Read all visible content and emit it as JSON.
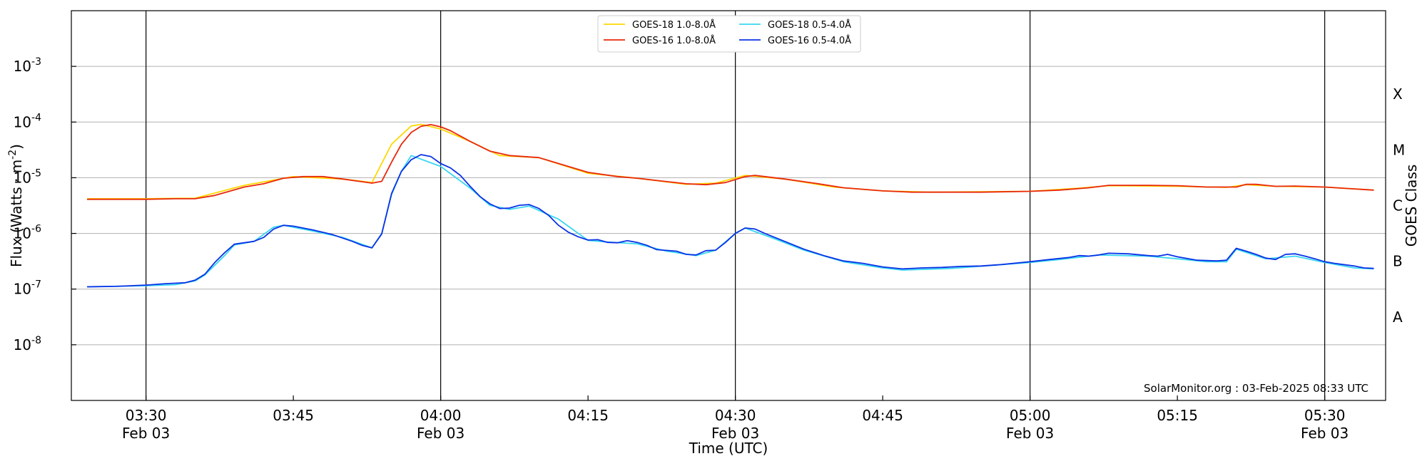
{
  "chart_data": {
    "type": "line",
    "title": "",
    "xlabel": "Time (UTC)",
    "ylabel": "Flux (Watts · m",
    "ylabel_superscript": "-2",
    "ylabel_suffix": ")",
    "y2label": "GOES Class",
    "yscale": "log",
    "ylim": [
      1e-09,
      0.01
    ],
    "x_range_minutes": [
      "03:23",
      "05:35"
    ],
    "grid": "horizontal",
    "legend_position": "top-center",
    "credit": "SolarMonitor.org : 03-Feb-2025 08:33 UTC",
    "yticks": [
      {
        "exp": "-8",
        "value": 1e-08
      },
      {
        "exp": "-7",
        "value": 1e-07
      },
      {
        "exp": "-6",
        "value": 1e-06
      },
      {
        "exp": "-5",
        "value": 1e-05
      },
      {
        "exp": "-4",
        "value": 0.0001
      },
      {
        "exp": "-3",
        "value": 0.001
      }
    ],
    "xticks": [
      {
        "time": "03:30",
        "date": "Feb 03",
        "vline": true
      },
      {
        "time": "03:45",
        "date": "",
        "vline": false
      },
      {
        "time": "04:00",
        "date": "Feb 03",
        "vline": true
      },
      {
        "time": "04:15",
        "date": "",
        "vline": false
      },
      {
        "time": "04:30",
        "date": "Feb 03",
        "vline": true
      },
      {
        "time": "04:45",
        "date": "",
        "vline": false
      },
      {
        "time": "05:00",
        "date": "Feb 03",
        "vline": true
      },
      {
        "time": "05:15",
        "date": "",
        "vline": false
      },
      {
        "time": "05:30",
        "date": "Feb 03",
        "vline": true
      }
    ],
    "goes_classes": [
      {
        "label": "A",
        "value": 3.16e-08
      },
      {
        "label": "B",
        "value": 3.16e-07
      },
      {
        "label": "C",
        "value": 3.16e-06
      },
      {
        "label": "M",
        "value": 3.16e-05
      },
      {
        "label": "X",
        "value": 0.000316
      }
    ],
    "series": [
      {
        "name": "GOES-18 1.0-8.0Å",
        "color": "#ffd700",
        "points": [
          [
            "03:24",
            4.2e-06
          ],
          [
            "03:30",
            4.2e-06
          ],
          [
            "03:35",
            4.3e-06
          ],
          [
            "03:40",
            7.3e-06
          ],
          [
            "03:45",
            1.05e-05
          ],
          [
            "03:50",
            9.5e-06
          ],
          [
            "03:53",
            8.2e-06
          ],
          [
            "03:55",
            4e-05
          ],
          [
            "03:57",
            8.5e-05
          ],
          [
            "03:58",
            9.1e-05
          ],
          [
            "04:00",
            7.5e-05
          ],
          [
            "04:03",
            4.5e-05
          ],
          [
            "04:06",
            2.5e-05
          ],
          [
            "04:10",
            2.3e-05
          ],
          [
            "04:15",
            1.2e-05
          ],
          [
            "04:20",
            9.8e-06
          ],
          [
            "04:25",
            7.6e-06
          ],
          [
            "04:28",
            8e-06
          ],
          [
            "04:31",
            1.1e-05
          ],
          [
            "04:35",
            9.5e-06
          ],
          [
            "04:40",
            6.8e-06
          ],
          [
            "04:45",
            5.8e-06
          ],
          [
            "04:50",
            5.5e-06
          ],
          [
            "05:00",
            5.7e-06
          ],
          [
            "05:05",
            6.5e-06
          ],
          [
            "05:08",
            7.2e-06
          ],
          [
            "05:15",
            7e-06
          ],
          [
            "05:20",
            6.7e-06
          ],
          [
            "05:22",
            7.5e-06
          ],
          [
            "05:25",
            7e-06
          ],
          [
            "05:30",
            6.8e-06
          ],
          [
            "05:35",
            6e-06
          ]
        ]
      },
      {
        "name": "GOES-16 1.0-8.0Å",
        "color": "#e8280a",
        "points": [
          [
            "03:24",
            4.1e-06
          ],
          [
            "03:27",
            4.1e-06
          ],
          [
            "03:30",
            4.1e-06
          ],
          [
            "03:33",
            4.2e-06
          ],
          [
            "03:35",
            4.2e-06
          ],
          [
            "03:37",
            4.8e-06
          ],
          [
            "03:40",
            6.8e-06
          ],
          [
            "03:42",
            7.8e-06
          ],
          [
            "03:44",
            9.8e-06
          ],
          [
            "03:46",
            1.05e-05
          ],
          [
            "03:48",
            1.05e-05
          ],
          [
            "03:50",
            9.5e-06
          ],
          [
            "03:53",
            8e-06
          ],
          [
            "03:54",
            8.6e-06
          ],
          [
            "03:55",
            1.9e-05
          ],
          [
            "03:56",
            4e-05
          ],
          [
            "03:57",
            6.5e-05
          ],
          [
            "03:58",
            8.4e-05
          ],
          [
            "03:59",
            9e-05
          ],
          [
            "04:00",
            8.2e-05
          ],
          [
            "04:01",
            7e-05
          ],
          [
            "04:03",
            4.5e-05
          ],
          [
            "04:05",
            3e-05
          ],
          [
            "04:07",
            2.5e-05
          ],
          [
            "04:10",
            2.3e-05
          ],
          [
            "04:12",
            1.8e-05
          ],
          [
            "04:15",
            1.25e-05
          ],
          [
            "04:18",
            1.05e-05
          ],
          [
            "04:20",
            9.8e-06
          ],
          [
            "04:23",
            8.5e-06
          ],
          [
            "04:25",
            7.8e-06
          ],
          [
            "04:27",
            7.5e-06
          ],
          [
            "04:29",
            8.2e-06
          ],
          [
            "04:31",
            1.05e-05
          ],
          [
            "04:32",
            1.1e-05
          ],
          [
            "04:35",
            9.5e-06
          ],
          [
            "04:38",
            8e-06
          ],
          [
            "04:41",
            6.6e-06
          ],
          [
            "04:45",
            5.8e-06
          ],
          [
            "04:48",
            5.5e-06
          ],
          [
            "04:52",
            5.5e-06
          ],
          [
            "04:55",
            5.5e-06
          ],
          [
            "05:00",
            5.7e-06
          ],
          [
            "05:03",
            6e-06
          ],
          [
            "05:06",
            6.6e-06
          ],
          [
            "05:08",
            7.3e-06
          ],
          [
            "05:12",
            7.3e-06
          ],
          [
            "05:15",
            7.2e-06
          ],
          [
            "05:18",
            6.8e-06
          ],
          [
            "05:21",
            6.8e-06
          ],
          [
            "05:22",
            7.6e-06
          ],
          [
            "05:23",
            7.6e-06
          ],
          [
            "05:25",
            7e-06
          ],
          [
            "05:27",
            7.1e-06
          ],
          [
            "05:30",
            6.8e-06
          ],
          [
            "05:33",
            6.3e-06
          ],
          [
            "05:35",
            6e-06
          ]
        ]
      },
      {
        "name": "GOES-18 0.5-4.0Å",
        "color": "#39d6f0",
        "points": [
          [
            "03:24",
            1.1e-07
          ],
          [
            "03:30",
            1.15e-07
          ],
          [
            "03:33",
            1.2e-07
          ],
          [
            "03:35",
            1.4e-07
          ],
          [
            "03:36",
            1.8e-07
          ],
          [
            "03:38",
            4e-07
          ],
          [
            "03:39",
            6.2e-07
          ],
          [
            "03:41",
            7.2e-07
          ],
          [
            "03:43",
            1.3e-06
          ],
          [
            "03:44",
            1.4e-06
          ],
          [
            "03:47",
            1.1e-06
          ],
          [
            "03:50",
            8.5e-07
          ],
          [
            "03:53",
            5.5e-07
          ],
          [
            "03:54",
            1e-06
          ],
          [
            "03:55",
            5e-06
          ],
          [
            "03:56",
            1.3e-05
          ],
          [
            "03:57",
            2.5e-05
          ],
          [
            "04:00",
            1.6e-05
          ],
          [
            "04:03",
            6.5e-06
          ],
          [
            "04:05",
            3.2e-06
          ],
          [
            "04:07",
            2.7e-06
          ],
          [
            "04:09",
            3.1e-06
          ],
          [
            "04:12",
            1.8e-06
          ],
          [
            "04:15",
            7.5e-07
          ],
          [
            "04:17",
            7e-07
          ],
          [
            "04:20",
            6.5e-07
          ],
          [
            "04:23",
            4.8e-07
          ],
          [
            "04:26",
            4e-07
          ],
          [
            "04:28",
            5e-07
          ],
          [
            "04:30",
            1e-06
          ],
          [
            "04:31",
            1.25e-06
          ],
          [
            "04:34",
            8e-07
          ],
          [
            "04:37",
            5e-07
          ],
          [
            "04:41",
            3.1e-07
          ],
          [
            "04:45",
            2.4e-07
          ],
          [
            "04:47",
            2.2e-07
          ],
          [
            "04:52",
            2.35e-07
          ],
          [
            "05:00",
            3e-07
          ],
          [
            "05:03",
            3.4e-07
          ],
          [
            "05:07",
            4.1e-07
          ],
          [
            "05:12",
            3.9e-07
          ],
          [
            "05:15",
            3.5e-07
          ],
          [
            "05:18",
            3.1e-07
          ],
          [
            "05:20",
            3.1e-07
          ],
          [
            "05:21",
            5.2e-07
          ],
          [
            "05:24",
            3.5e-07
          ],
          [
            "05:27",
            3.9e-07
          ],
          [
            "05:30",
            3e-07
          ],
          [
            "05:33",
            2.4e-07
          ],
          [
            "05:35",
            2.3e-07
          ]
        ]
      },
      {
        "name": "GOES-16 0.5-4.0Å",
        "color": "#0a32e6",
        "points": [
          [
            "03:24",
            1.1e-07
          ],
          [
            "03:27",
            1.12e-07
          ],
          [
            "03:30",
            1.18e-07
          ],
          [
            "03:32",
            1.25e-07
          ],
          [
            "03:34",
            1.3e-07
          ],
          [
            "03:35",
            1.45e-07
          ],
          [
            "03:36",
            1.85e-07
          ],
          [
            "03:37",
            3e-07
          ],
          [
            "03:38",
            4.5e-07
          ],
          [
            "03:39",
            6.4e-07
          ],
          [
            "03:41",
            7.2e-07
          ],
          [
            "03:42",
            8.5e-07
          ],
          [
            "03:43",
            1.2e-06
          ],
          [
            "03:44",
            1.4e-06
          ],
          [
            "03:45",
            1.35e-06
          ],
          [
            "03:47",
            1.15e-06
          ],
          [
            "03:49",
            9.5e-07
          ],
          [
            "03:51",
            7.2e-07
          ],
          [
            "03:52",
            6.1e-07
          ],
          [
            "03:53",
            5.5e-07
          ],
          [
            "03:54",
            9.8e-07
          ],
          [
            "03:55",
            5.2e-06
          ],
          [
            "03:56",
            1.3e-05
          ],
          [
            "03:57",
            2.1e-05
          ],
          [
            "03:58",
            2.6e-05
          ],
          [
            "03:59",
            2.4e-05
          ],
          [
            "04:00",
            1.8e-05
          ],
          [
            "04:01",
            1.5e-05
          ],
          [
            "04:02",
            1.1e-05
          ],
          [
            "04:03",
            7e-06
          ],
          [
            "04:04",
            4.6e-06
          ],
          [
            "04:05",
            3.4e-06
          ],
          [
            "04:06",
            2.8e-06
          ],
          [
            "04:07",
            2.85e-06
          ],
          [
            "04:08",
            3.2e-06
          ],
          [
            "04:09",
            3.3e-06
          ],
          [
            "04:10",
            2.8e-06
          ],
          [
            "04:11",
            2.1e-06
          ],
          [
            "04:12",
            1.4e-06
          ],
          [
            "04:13",
            1.05e-06
          ],
          [
            "04:14",
            8.7e-07
          ],
          [
            "04:15",
            7.6e-07
          ],
          [
            "04:16",
            7.7e-07
          ],
          [
            "04:17",
            6.9e-07
          ],
          [
            "04:18",
            6.8e-07
          ],
          [
            "04:19",
            7.4e-07
          ],
          [
            "04:20",
            6.9e-07
          ],
          [
            "04:21",
            6.1e-07
          ],
          [
            "04:22",
            5.1e-07
          ],
          [
            "04:24",
            4.8e-07
          ],
          [
            "04:25",
            4.2e-07
          ],
          [
            "04:26",
            4.1e-07
          ],
          [
            "04:27",
            4.9e-07
          ],
          [
            "04:28",
            5e-07
          ],
          [
            "04:29",
            6.9e-07
          ],
          [
            "04:30",
            1e-06
          ],
          [
            "04:31",
            1.25e-06
          ],
          [
            "04:32",
            1.2e-06
          ],
          [
            "04:33",
            1e-06
          ],
          [
            "04:35",
            7.2e-07
          ],
          [
            "04:37",
            5.2e-07
          ],
          [
            "04:39",
            4e-07
          ],
          [
            "04:41",
            3.2e-07
          ],
          [
            "04:43",
            2.9e-07
          ],
          [
            "04:45",
            2.5e-07
          ],
          [
            "04:47",
            2.3e-07
          ],
          [
            "04:49",
            2.4e-07
          ],
          [
            "04:51",
            2.45e-07
          ],
          [
            "04:53",
            2.55e-07
          ],
          [
            "04:55",
            2.6e-07
          ],
          [
            "04:57",
            2.75e-07
          ],
          [
            "05:00",
            3.1e-07
          ],
          [
            "05:02",
            3.4e-07
          ],
          [
            "05:04",
            3.7e-07
          ],
          [
            "05:05",
            4e-07
          ],
          [
            "05:06",
            3.9e-07
          ],
          [
            "05:07",
            4.1e-07
          ],
          [
            "05:08",
            4.4e-07
          ],
          [
            "05:10",
            4.3e-07
          ],
          [
            "05:12",
            4e-07
          ],
          [
            "05:13",
            3.9e-07
          ],
          [
            "05:14",
            4.2e-07
          ],
          [
            "05:15",
            3.8e-07
          ],
          [
            "05:17",
            3.3e-07
          ],
          [
            "05:19",
            3.2e-07
          ],
          [
            "05:20",
            3.3e-07
          ],
          [
            "05:21",
            5.4e-07
          ],
          [
            "05:22",
            4.8e-07
          ],
          [
            "05:23",
            4.2e-07
          ],
          [
            "05:24",
            3.6e-07
          ],
          [
            "05:25",
            3.4e-07
          ],
          [
            "05:26",
            4.2e-07
          ],
          [
            "05:27",
            4.3e-07
          ],
          [
            "05:28",
            3.9e-07
          ],
          [
            "05:29",
            3.5e-07
          ],
          [
            "05:30",
            3.1e-07
          ],
          [
            "05:31",
            2.9e-07
          ],
          [
            "05:33",
            2.6e-07
          ],
          [
            "05:34",
            2.4e-07
          ],
          [
            "05:35",
            2.35e-07
          ]
        ]
      }
    ]
  }
}
